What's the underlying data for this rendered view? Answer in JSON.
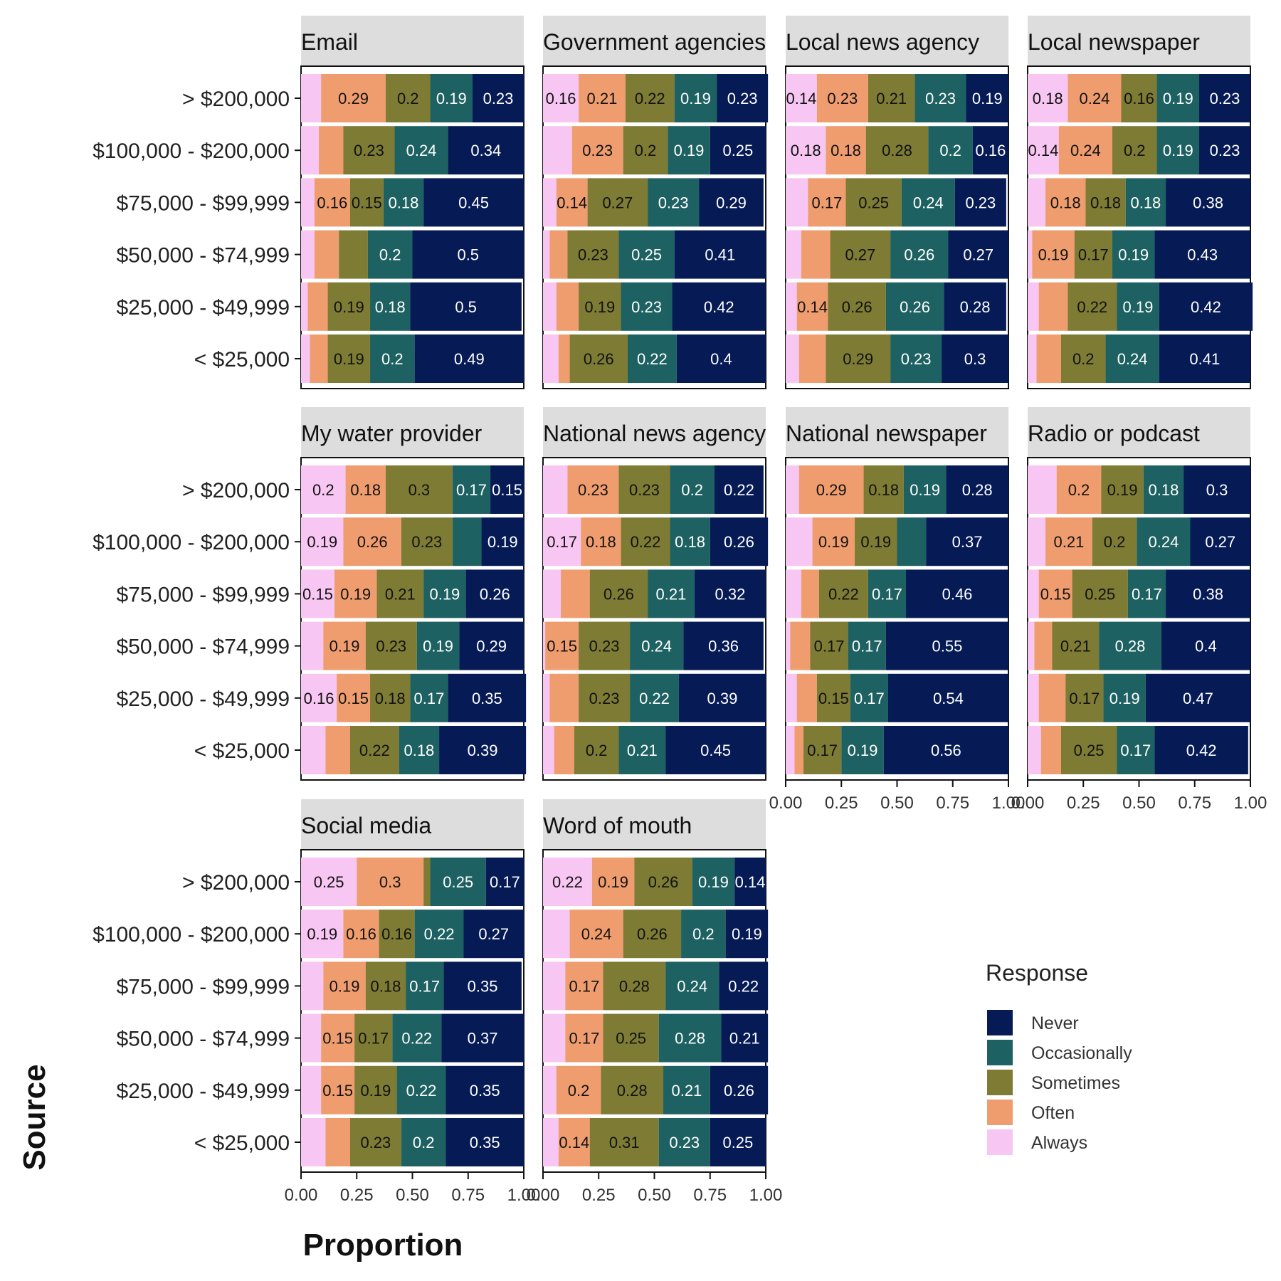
{
  "chart_data": {
    "type": "bar",
    "orientation": "horizontal",
    "stacked": true,
    "xlabel": "Proportion",
    "ylabel": "Source",
    "xlim": [
      0,
      1
    ],
    "x_ticks": [
      "0.00",
      "0.25",
      "0.50",
      "0.75",
      "1.00"
    ],
    "categories": [
      "> $200,000",
      "$100,000 - $200,000",
      "$75,000 - $99,999",
      "$50,000 - $74,999",
      "$25,000 - $49,999",
      "< $25,000"
    ],
    "legend": {
      "title": "Response",
      "position": "right",
      "entries": [
        "Never",
        "Occasionally",
        "Sometimes",
        "Often",
        "Always"
      ]
    },
    "stack_order": [
      "Always",
      "Often",
      "Sometimes",
      "Occasionally",
      "Never"
    ],
    "colors": {
      "Always": "#f7c6f2",
      "Often": "#ef9d6e",
      "Sometimes": "#7d7b34",
      "Occasionally": "#1e6162",
      "Never": "#061a55"
    },
    "label_colors": {
      "Always": "#111111",
      "Often": "#111111",
      "Sometimes": "#111111",
      "Occasionally": "#ffffff",
      "Never": "#ffffff"
    },
    "facets": [
      {
        "title": "Email",
        "rows": [
          [
            0.09,
            0.29,
            0.2,
            0.19,
            0.23
          ],
          [
            0.08,
            0.11,
            0.23,
            0.24,
            0.34
          ],
          [
            0.06,
            0.16,
            0.15,
            0.18,
            0.45
          ],
          [
            0.06,
            0.11,
            0.13,
            0.2,
            0.5
          ],
          [
            0.03,
            0.09,
            0.19,
            0.18,
            0.5
          ],
          [
            0.04,
            0.08,
            0.19,
            0.2,
            0.49
          ]
        ]
      },
      {
        "title": "Government agencies",
        "rows": [
          [
            0.16,
            0.21,
            0.22,
            0.19,
            0.23
          ],
          [
            0.13,
            0.23,
            0.2,
            0.19,
            0.25
          ],
          [
            0.06,
            0.14,
            0.27,
            0.23,
            0.29
          ],
          [
            0.03,
            0.08,
            0.23,
            0.25,
            0.41
          ],
          [
            0.06,
            0.1,
            0.19,
            0.23,
            0.42
          ],
          [
            0.07,
            0.05,
            0.26,
            0.22,
            0.4
          ]
        ]
      },
      {
        "title": "Local news agency",
        "rows": [
          [
            0.14,
            0.23,
            0.21,
            0.23,
            0.19
          ],
          [
            0.18,
            0.18,
            0.28,
            0.2,
            0.16
          ],
          [
            0.1,
            0.17,
            0.25,
            0.24,
            0.23
          ],
          [
            0.07,
            0.13,
            0.27,
            0.26,
            0.27
          ],
          [
            0.05,
            0.14,
            0.26,
            0.26,
            0.28
          ],
          [
            0.06,
            0.12,
            0.29,
            0.23,
            0.3
          ]
        ]
      },
      {
        "title": "Local newspaper",
        "rows": [
          [
            0.18,
            0.24,
            0.16,
            0.19,
            0.23
          ],
          [
            0.14,
            0.24,
            0.2,
            0.19,
            0.23
          ],
          [
            0.08,
            0.18,
            0.18,
            0.18,
            0.38
          ],
          [
            0.02,
            0.19,
            0.17,
            0.19,
            0.43
          ],
          [
            0.05,
            0.13,
            0.22,
            0.19,
            0.42
          ],
          [
            0.04,
            0.11,
            0.2,
            0.24,
            0.41
          ]
        ]
      },
      {
        "title": "My water provider",
        "rows": [
          [
            0.2,
            0.18,
            0.3,
            0.17,
            0.15
          ],
          [
            0.19,
            0.26,
            0.23,
            0.13,
            0.19
          ],
          [
            0.15,
            0.19,
            0.21,
            0.19,
            0.26
          ],
          [
            0.1,
            0.19,
            0.23,
            0.19,
            0.29
          ],
          [
            0.16,
            0.15,
            0.18,
            0.17,
            0.35
          ],
          [
            0.11,
            0.11,
            0.22,
            0.18,
            0.39
          ]
        ]
      },
      {
        "title": "National news agency",
        "rows": [
          [
            0.11,
            0.23,
            0.23,
            0.2,
            0.22
          ],
          [
            0.17,
            0.18,
            0.22,
            0.18,
            0.26
          ],
          [
            0.08,
            0.13,
            0.26,
            0.21,
            0.32
          ],
          [
            0.01,
            0.15,
            0.23,
            0.24,
            0.36
          ],
          [
            0.03,
            0.13,
            0.23,
            0.22,
            0.39
          ],
          [
            0.05,
            0.09,
            0.2,
            0.21,
            0.45
          ]
        ]
      },
      {
        "title": "National newspaper",
        "rows": [
          [
            0.06,
            0.29,
            0.18,
            0.19,
            0.28
          ],
          [
            0.12,
            0.19,
            0.19,
            0.13,
            0.37
          ],
          [
            0.07,
            0.08,
            0.22,
            0.17,
            0.46
          ],
          [
            0.02,
            0.09,
            0.17,
            0.17,
            0.55
          ],
          [
            0.05,
            0.09,
            0.15,
            0.17,
            0.54
          ],
          [
            0.04,
            0.04,
            0.17,
            0.19,
            0.56
          ]
        ]
      },
      {
        "title": "Radio or podcast",
        "rows": [
          [
            0.13,
            0.2,
            0.19,
            0.18,
            0.3
          ],
          [
            0.08,
            0.21,
            0.2,
            0.24,
            0.27
          ],
          [
            0.05,
            0.15,
            0.25,
            0.17,
            0.38
          ],
          [
            0.03,
            0.08,
            0.21,
            0.28,
            0.4
          ],
          [
            0.05,
            0.12,
            0.17,
            0.19,
            0.47
          ],
          [
            0.06,
            0.09,
            0.25,
            0.17,
            0.42
          ]
        ]
      },
      {
        "title": "Social media",
        "rows": [
          [
            0.25,
            0.3,
            0.03,
            0.25,
            0.17
          ],
          [
            0.19,
            0.16,
            0.16,
            0.22,
            0.27
          ],
          [
            0.1,
            0.19,
            0.18,
            0.17,
            0.35
          ],
          [
            0.09,
            0.15,
            0.17,
            0.22,
            0.37
          ],
          [
            0.09,
            0.15,
            0.19,
            0.22,
            0.35
          ],
          [
            0.11,
            0.11,
            0.23,
            0.2,
            0.35
          ]
        ]
      },
      {
        "title": "Word of mouth",
        "rows": [
          [
            0.22,
            0.19,
            0.26,
            0.19,
            0.14
          ],
          [
            0.12,
            0.24,
            0.26,
            0.2,
            0.19
          ],
          [
            0.1,
            0.17,
            0.28,
            0.24,
            0.22
          ],
          [
            0.1,
            0.17,
            0.25,
            0.28,
            0.21
          ],
          [
            0.06,
            0.2,
            0.28,
            0.21,
            0.26
          ],
          [
            0.07,
            0.14,
            0.31,
            0.23,
            0.25
          ]
        ]
      }
    ]
  }
}
